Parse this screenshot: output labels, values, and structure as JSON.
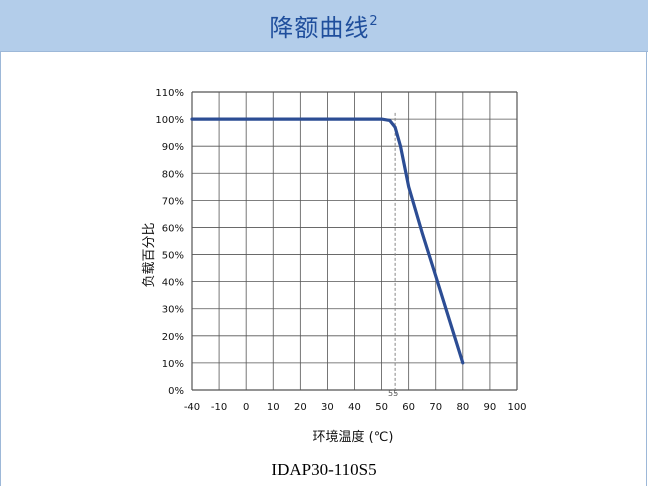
{
  "header": {
    "title": "降额曲线",
    "superscript": "2"
  },
  "caption": "IDAP30-110S5",
  "colors": {
    "header_bg": "#b3cdea",
    "header_text": "#1f4e9c",
    "curve": "#2c4d94",
    "grid": "#555555"
  },
  "chart_data": {
    "type": "line",
    "title": "",
    "xlabel": "环境温度 (℃)",
    "ylabel": "负载百分比",
    "xlim": [
      -40,
      100
    ],
    "ylim": [
      0,
      110
    ],
    "x_ticks": [
      -40,
      -10,
      0,
      10,
      20,
      30,
      40,
      50,
      60,
      70,
      80,
      90,
      100
    ],
    "x_tick_labels": [
      "-40",
      "-10",
      "0",
      "10",
      "20",
      "30",
      "40",
      "50",
      "60",
      "70",
      "80",
      "90",
      "100"
    ],
    "y_ticks": [
      0,
      10,
      20,
      30,
      40,
      50,
      60,
      70,
      80,
      90,
      100,
      110
    ],
    "y_tick_labels": [
      "0%",
      "10%",
      "20%",
      "30%",
      "40%",
      "50%",
      "60%",
      "70%",
      "80%",
      "90%",
      "100%",
      "110%"
    ],
    "grid": true,
    "annotation": {
      "x": 55,
      "label": "55",
      "style": "dashed"
    },
    "series": [
      {
        "x": [
          -40,
          50,
          53,
          55,
          57,
          60,
          65,
          70,
          75,
          80
        ],
        "y": [
          100,
          100,
          99.5,
          97,
          90,
          75,
          58,
          42,
          26,
          10
        ]
      }
    ]
  }
}
